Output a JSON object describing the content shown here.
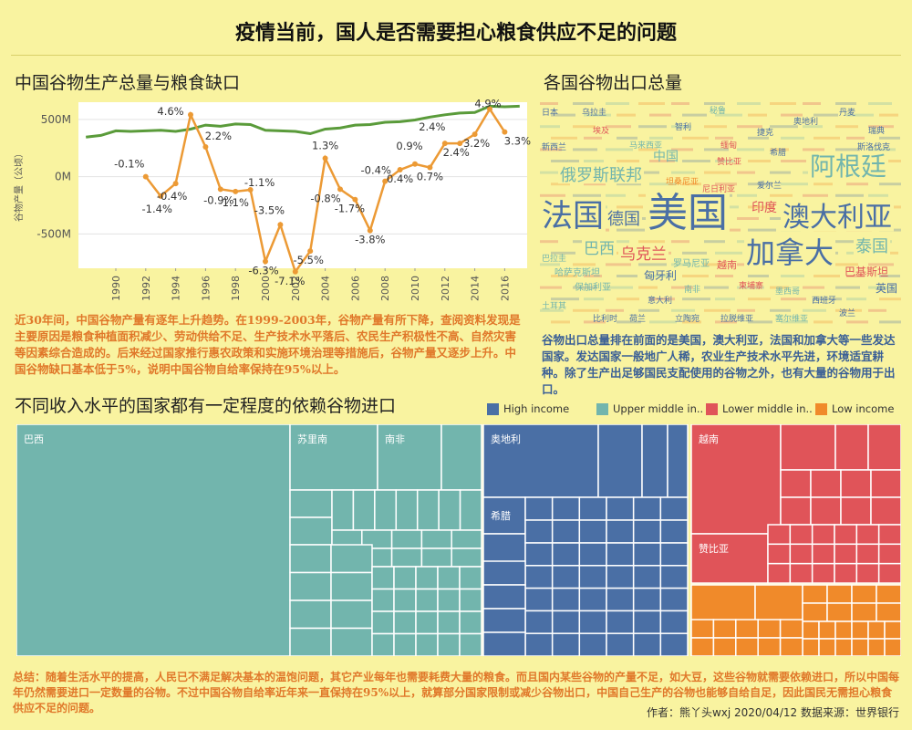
{
  "title": "疫情当前，国人是否需要担心粮食供应不足的问题",
  "section1": {
    "title": "中国谷物生产总量与粮食缺口",
    "note": "近30年间，中国谷物产量有逐年上升趋势。在1999-2003年，谷物产量有所下降，查阅资料发现是主要原因是粮食种植面积减少、劳动供给不足、生产技术水平落后、农民生产积极性不高、自然灾害等因素综合造成的。后来经过国家推行惠农政策和实施环境治理等措施后，谷物产量又逐步上升。中国谷物缺口基本低于5%，说明中国谷物自给率保持在95%以上。"
  },
  "section2": {
    "title": "各国谷物出口总量",
    "note": "谷物出口总量排在前面的是美国，澳大利亚，法国和加拿大等一些发达国家。发达国家一般地广人稀，农业生产技术水平先进，环境适宜耕种。除了生产出足够国民支配使用的谷物之外，也有大量的谷物用于出口。"
  },
  "section3": {
    "title": "不同收入水平的国家都有一定程度的依赖谷物进口"
  },
  "summary": "总结：随着生活水平的提高，人民已不满足解决基本的温饱问题，其它产业每年也需要耗费大量的粮食。而且国内某些谷物的产量不足，如大豆，这些谷物就需要依赖进口，所以中国每年仍然需要进口一定数量的谷物。不过中国谷物自给率近年来一直保持在95%以上，就算部分国家限制或减少谷物出口，中国自己生产的谷物也能够自给自足，因此国民无需担心粮食供应不足的问题。",
  "author": "作者：熊丫头wxj  2020/04/12 数据来源：世界银行",
  "colors": {
    "background": "#f9f3a0",
    "production_line": "#5a9b3a",
    "gap_line": "#ec9a35",
    "high_income": "#4a6fa5",
    "upper_middle": "#72b5ad",
    "lower_middle": "#e05459",
    "low_income": "#f08a2a"
  },
  "chart_data": [
    {
      "type": "line",
      "title": "中国谷物生产总量与粮食缺口",
      "ylabel": "谷物产量（公顷）",
      "ylim": [
        -800,
        650
      ],
      "yticks": [
        "500M",
        "0M",
        "-500M"
      ],
      "yticks_values": [
        500,
        0,
        -500
      ],
      "xticks": [
        "1990",
        "1992",
        "1994",
        "1996",
        "1998",
        "2000",
        "2002",
        "2004",
        "2006",
        "2008",
        "2010",
        "2012",
        "2014",
        "2016"
      ],
      "x": [
        1988,
        1989,
        1990,
        1991,
        1992,
        1993,
        1994,
        1995,
        1996,
        1997,
        1998,
        1999,
        2000,
        2001,
        2002,
        2003,
        2004,
        2005,
        2006,
        2007,
        2008,
        2009,
        2010,
        2011,
        2012,
        2013,
        2014,
        2015,
        2016,
        2017
      ],
      "series": [
        {
          "values": [
            345,
            360,
            400,
            395,
            400,
            405,
            395,
            415,
            450,
            440,
            460,
            455,
            405,
            400,
            395,
            375,
            415,
            425,
            450,
            455,
            475,
            480,
            495,
            520,
            540,
            555,
            560,
            615,
            610,
            615
          ]
        },
        {
          "x": [
            1992,
            1993,
            1994,
            1995,
            1996,
            1997,
            1998,
            1999,
            2000,
            2001,
            2002,
            2003,
            2004,
            2005,
            2006,
            2007,
            2008,
            2009,
            2010,
            2011,
            2012,
            2013,
            2014,
            2015,
            2016
          ],
          "values": [
            0,
            -170,
            -60,
            540,
            260,
            -110,
            -130,
            -115,
            -740,
            -420,
            -830,
            -650,
            160,
            -110,
            -200,
            -470,
            -40,
            60,
            110,
            80,
            290,
            290,
            370,
            590,
            390
          ],
          "labels": [
            "-0.1%",
            "-1.4%",
            "-0.4%",
            "4.6%",
            "2.2%",
            "-0.9%",
            "-1.1%",
            "-1.1%",
            "-6.3%",
            "-3.5%",
            "-7.1%",
            "-5.5%",
            "1.3%",
            "-0.8%",
            "-1.7%",
            "-3.8%",
            "-0.4%",
            "0.4%",
            "0.9%",
            "0.7%",
            "2.4%",
            "2.4%",
            "3.2%",
            "4.9%",
            "3.3%"
          ]
        }
      ]
    },
    {
      "type": "wordcloud",
      "title": "各国谷物出口总量",
      "words": [
        {
          "text": "美国",
          "color": "#4a6fa5"
        },
        {
          "text": "法国",
          "color": "#4a6fa5"
        },
        {
          "text": "澳大利亚",
          "color": "#4a6fa5"
        },
        {
          "text": "加拿大",
          "color": "#4a6fa5"
        },
        {
          "text": "阿根廷",
          "color": "#72b5ad"
        },
        {
          "text": "俄罗斯联邦",
          "color": "#72b5ad"
        },
        {
          "text": "德国",
          "color": "#4a6fa5"
        },
        {
          "text": "巴西",
          "color": "#72b5ad"
        },
        {
          "text": "乌克兰",
          "color": "#e05459"
        },
        {
          "text": "印度",
          "color": "#e05459"
        },
        {
          "text": "泰国",
          "color": "#72b5ad"
        },
        {
          "text": "中国",
          "color": "#72b5ad"
        },
        {
          "text": "巴基斯坦",
          "color": "#e05459"
        },
        {
          "text": "英国",
          "color": "#4a6fa5"
        },
        {
          "text": "匈牙利",
          "color": "#4a6fa5"
        },
        {
          "text": "越南",
          "color": "#e05459"
        },
        {
          "text": "罗马尼亚",
          "color": "#72b5ad"
        },
        {
          "text": "哈萨克斯坦",
          "color": "#72b5ad"
        },
        {
          "text": "保加利亚",
          "color": "#72b5ad"
        },
        {
          "text": "乌拉圭",
          "color": "#4a6fa5"
        },
        {
          "text": "巴拉圭",
          "color": "#72b5ad"
        },
        {
          "text": "意大利",
          "color": "#4a6fa5"
        },
        {
          "text": "南非",
          "color": "#72b5ad"
        },
        {
          "text": "柬埔寨",
          "color": "#e05459"
        },
        {
          "text": "墨西哥",
          "color": "#72b5ad"
        },
        {
          "text": "西班牙",
          "color": "#4a6fa5"
        },
        {
          "text": "波兰",
          "color": "#4a6fa5"
        },
        {
          "text": "土耳其",
          "color": "#72b5ad"
        },
        {
          "text": "比利时",
          "color": "#4a6fa5"
        },
        {
          "text": "荷兰",
          "color": "#4a6fa5"
        },
        {
          "text": "立陶宛",
          "color": "#4a6fa5"
        },
        {
          "text": "拉脱维亚",
          "color": "#4a6fa5"
        },
        {
          "text": "塞尔维亚",
          "color": "#72b5ad"
        },
        {
          "text": "缅甸",
          "color": "#e05459"
        },
        {
          "text": "捷克",
          "color": "#4a6fa5"
        },
        {
          "text": "奥地利",
          "color": "#4a6fa5"
        },
        {
          "text": "丹麦",
          "color": "#4a6fa5"
        },
        {
          "text": "瑞典",
          "color": "#4a6fa5"
        },
        {
          "text": "日本",
          "color": "#4a6fa5"
        },
        {
          "text": "埃及",
          "color": "#e05459"
        },
        {
          "text": "马来西亚",
          "color": "#72b5ad"
        },
        {
          "text": "智利",
          "color": "#4a6fa5"
        },
        {
          "text": "秘鲁",
          "color": "#72b5ad"
        },
        {
          "text": "希腊",
          "color": "#4a6fa5"
        },
        {
          "text": "赞比亚",
          "color": "#e05459"
        },
        {
          "text": "坦桑尼亚",
          "color": "#f08a2a"
        },
        {
          "text": "尼日利亚",
          "color": "#e05459"
        },
        {
          "text": "新西兰",
          "color": "#4a6fa5"
        },
        {
          "text": "爱尔兰",
          "color": "#4a6fa5"
        },
        {
          "text": "斯洛伐克",
          "color": "#4a6fa5"
        }
      ]
    },
    {
      "type": "treemap",
      "title": "不同收入水平的国家都有一定程度的依赖谷物进口",
      "legend": [
        {
          "name": "High income",
          "color": "#4a6fa5"
        },
        {
          "name": "Upper middle in..",
          "color": "#72b5ad"
        },
        {
          "name": "Lower middle in..",
          "color": "#e05459"
        },
        {
          "name": "Low income",
          "color": "#f08a2a"
        }
      ],
      "groups": [
        {
          "name": "Upper middle in..",
          "color": "#72b5ad",
          "labels": [
            "巴西",
            "苏里南",
            "南非"
          ]
        },
        {
          "name": "High income",
          "color": "#4a6fa5",
          "labels": [
            "奥地利",
            "希腊"
          ]
        },
        {
          "name": "Lower middle in..",
          "color": "#e05459",
          "labels": [
            "越南",
            "赞比亚"
          ]
        },
        {
          "name": "Low income",
          "color": "#f08a2a",
          "labels": []
        }
      ]
    }
  ]
}
